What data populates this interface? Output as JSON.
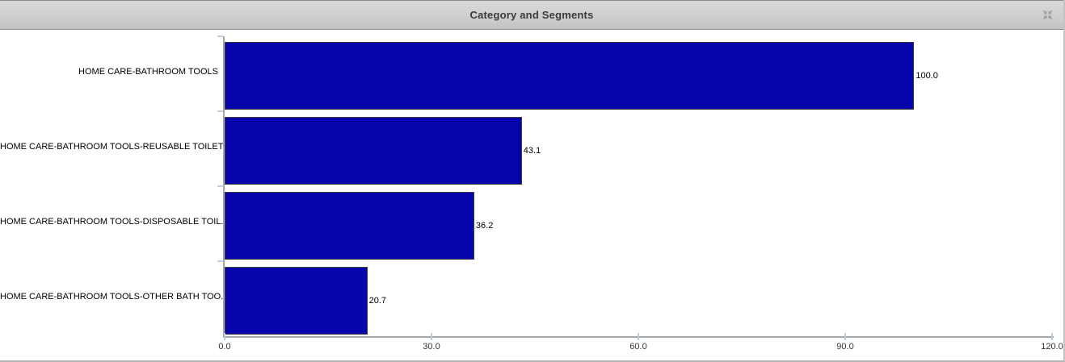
{
  "widget": {
    "title": "Category and Segments",
    "controls": {
      "collapse_icon": "collapse-icon"
    }
  },
  "colors": {
    "bar_fill": "#0505ab",
    "bar_border": "#3c3c3c",
    "axis_line": "#a6a6a6",
    "tick_mark": "#bccfe8",
    "title_text": "#3a3a3a"
  },
  "chart_data": {
    "type": "bar",
    "orientation": "horizontal",
    "title": "Category and Segments",
    "categories": [
      "HOME CARE-BATHROOM TOOLS",
      "HOME CARE-BATHROOM TOOLS-REUSABLE TOILET...",
      "HOME CARE-BATHROOM TOOLS-DISPOSABLE TOIL...",
      "HOME CARE-BATHROOM TOOLS-OTHER BATH TOO..."
    ],
    "values": [
      100.0,
      43.1,
      36.2,
      20.7
    ],
    "value_labels": [
      "100.0",
      "43.1",
      "36.2",
      "20.7"
    ],
    "xlabel": "",
    "ylabel": "",
    "xlim": [
      0,
      120
    ],
    "xticks": [
      {
        "value": 0,
        "label": "0.0"
      },
      {
        "value": 30,
        "label": "30.0"
      },
      {
        "value": 60,
        "label": "60.0"
      },
      {
        "value": 90,
        "label": "90.0"
      },
      {
        "value": 120,
        "label": "120.0"
      }
    ],
    "grid": "off",
    "legend": "none"
  }
}
